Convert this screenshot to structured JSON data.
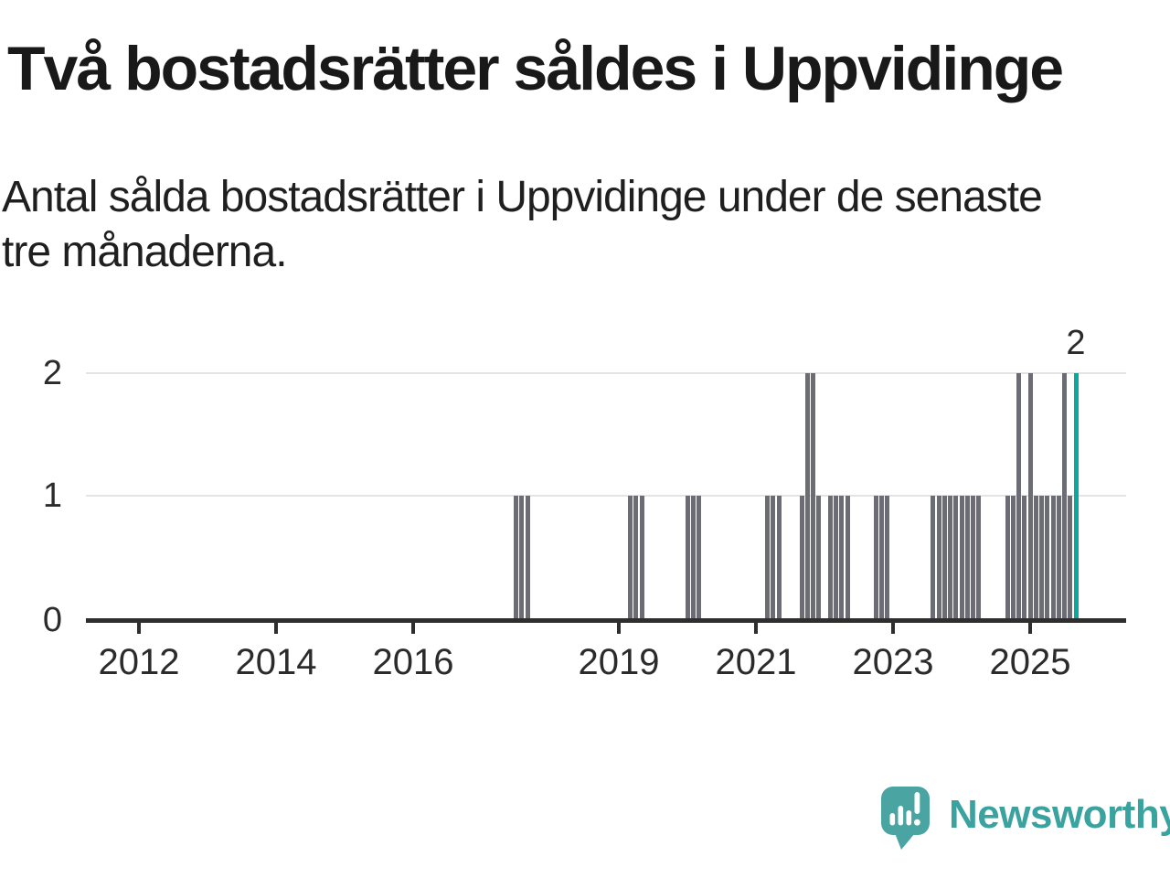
{
  "header": {
    "title": "Två bostadsrätter såldes i Uppvidinge",
    "subtitle_lines": [
      "Antal sålda bostadsrätter i Uppvidinge under de senaste",
      "tre månaderna."
    ]
  },
  "colors": {
    "bar": "#6c6c74",
    "highlight": "#0ca79f",
    "grid": "#e4e4e4",
    "axis": "#2e2e2e",
    "text": "#2b2b2b",
    "logo": "#4aa5a2",
    "logo_text": "#3aa3a0"
  },
  "chart_data": {
    "type": "bar",
    "title": "Två bostadsrätter såldes i Uppvidinge",
    "subtitle": "Antal sålda bostadsrätter i Uppvidinge under de senaste tre månaderna.",
    "xlabel": "",
    "ylabel": "",
    "ylim": [
      0,
      2
    ],
    "grid": "horizontal",
    "y_ticks": [
      0,
      1,
      2
    ],
    "x_tick_years": [
      2012,
      2014,
      2016,
      2019,
      2021,
      2023,
      2025
    ],
    "x_range_months": [
      "2011-03",
      "2025-10"
    ],
    "highlight_label": "2",
    "points": [
      {
        "month": "2017-07",
        "value": 1
      },
      {
        "month": "2017-08",
        "value": 1
      },
      {
        "month": "2017-09",
        "value": 1
      },
      {
        "month": "2019-03",
        "value": 1
      },
      {
        "month": "2019-04",
        "value": 1
      },
      {
        "month": "2019-05",
        "value": 1
      },
      {
        "month": "2020-01",
        "value": 1
      },
      {
        "month": "2020-02",
        "value": 1
      },
      {
        "month": "2020-03",
        "value": 1
      },
      {
        "month": "2021-03",
        "value": 1
      },
      {
        "month": "2021-04",
        "value": 1
      },
      {
        "month": "2021-05",
        "value": 1
      },
      {
        "month": "2021-09",
        "value": 1
      },
      {
        "month": "2021-10",
        "value": 2
      },
      {
        "month": "2021-11",
        "value": 2
      },
      {
        "month": "2021-12",
        "value": 1
      },
      {
        "month": "2022-02",
        "value": 1
      },
      {
        "month": "2022-03",
        "value": 1
      },
      {
        "month": "2022-04",
        "value": 1
      },
      {
        "month": "2022-05",
        "value": 1
      },
      {
        "month": "2022-10",
        "value": 1
      },
      {
        "month": "2022-11",
        "value": 1
      },
      {
        "month": "2022-12",
        "value": 1
      },
      {
        "month": "2023-08",
        "value": 1
      },
      {
        "month": "2023-09",
        "value": 1
      },
      {
        "month": "2023-10",
        "value": 1
      },
      {
        "month": "2023-11",
        "value": 1
      },
      {
        "month": "2023-12",
        "value": 1
      },
      {
        "month": "2024-01",
        "value": 1
      },
      {
        "month": "2024-02",
        "value": 1
      },
      {
        "month": "2024-03",
        "value": 1
      },
      {
        "month": "2024-04",
        "value": 1
      },
      {
        "month": "2024-09",
        "value": 1
      },
      {
        "month": "2024-10",
        "value": 1
      },
      {
        "month": "2024-11",
        "value": 2
      },
      {
        "month": "2024-12",
        "value": 1
      },
      {
        "month": "2025-01",
        "value": 2
      },
      {
        "month": "2025-02",
        "value": 1
      },
      {
        "month": "2025-03",
        "value": 1
      },
      {
        "month": "2025-04",
        "value": 1
      },
      {
        "month": "2025-05",
        "value": 1
      },
      {
        "month": "2025-06",
        "value": 1
      },
      {
        "month": "2025-07",
        "value": 2
      },
      {
        "month": "2025-08",
        "value": 1
      },
      {
        "month": "2025-09",
        "value": 2,
        "highlight": true
      }
    ]
  },
  "branding": {
    "name": "Newsworthy",
    "icon": "newsworthy-speech-bubble-chart-icon"
  }
}
